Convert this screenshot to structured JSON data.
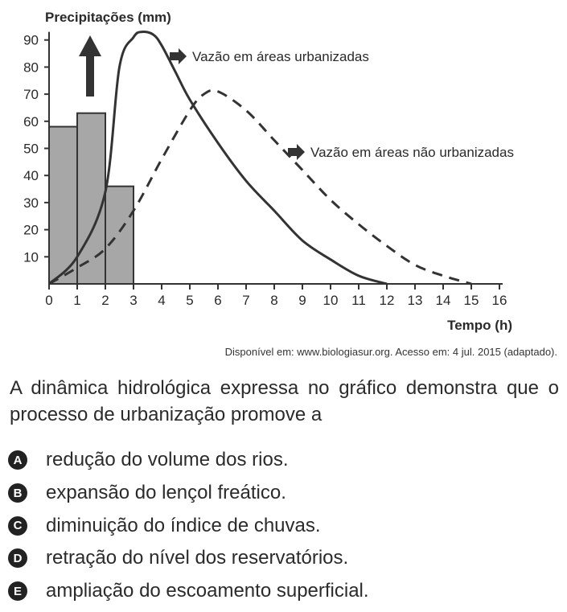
{
  "chart_data": {
    "type": "bar",
    "ylabel": "Precipitações (mm)",
    "xlabel": "Tempo (h)",
    "xlim": [
      0,
      16
    ],
    "ylim": [
      0,
      95
    ],
    "xticks": [
      0,
      1,
      2,
      3,
      4,
      5,
      6,
      7,
      8,
      9,
      10,
      11,
      12,
      13,
      14,
      15,
      16
    ],
    "yticks": [
      10,
      20,
      30,
      40,
      50,
      60,
      70,
      80,
      90
    ],
    "bars": [
      {
        "x0": 0,
        "x1": 1,
        "value": 58
      },
      {
        "x0": 1,
        "x1": 2,
        "value": 63
      },
      {
        "x0": 2,
        "x1": 3,
        "value": 36
      }
    ],
    "bar_color": "#a7a7a7",
    "series": [
      {
        "name": "Vazão em áreas urbanizadas",
        "style": "solid",
        "x": [
          0,
          1,
          2,
          2.5,
          3,
          3.3,
          3.7,
          4,
          4.5,
          5,
          6,
          7,
          8,
          9,
          10,
          11,
          12
        ],
        "y": [
          0,
          10,
          34,
          80,
          91,
          93,
          92,
          88,
          78,
          68,
          52,
          38,
          27,
          16,
          9,
          3,
          0
        ]
      },
      {
        "name": "Vazão em áreas não urbanizadas",
        "style": "dashed",
        "x": [
          0,
          1,
          2,
          3,
          4,
          5,
          5.5,
          6,
          7,
          8,
          9,
          10,
          11,
          12,
          13,
          14,
          15
        ],
        "y": [
          0,
          6,
          13,
          27,
          46,
          64,
          70,
          71,
          64,
          53,
          42,
          31,
          22,
          14,
          7,
          3,
          0
        ]
      }
    ],
    "annotations": [
      "Vazão em áreas urbanizadas",
      "Vazão em áreas não urbanizadas"
    ],
    "up_arrow": true
  },
  "source": "Disponível em: www.biologiasur.org. Acesso em: 4 jul. 2015 (adaptado).",
  "question": "A dinâmica hidrológica expressa no gráfico demonstra que o processo de urbanização promove a",
  "options": [
    {
      "letter": "A",
      "text": "redução do volume dos rios."
    },
    {
      "letter": "B",
      "text": "expansão do lençol freático."
    },
    {
      "letter": "C",
      "text": "diminuição do índice de chuvas."
    },
    {
      "letter": "D",
      "text": "retração do nível dos reservatórios."
    },
    {
      "letter": "E",
      "text": "ampliação do escoamento superficial."
    }
  ]
}
